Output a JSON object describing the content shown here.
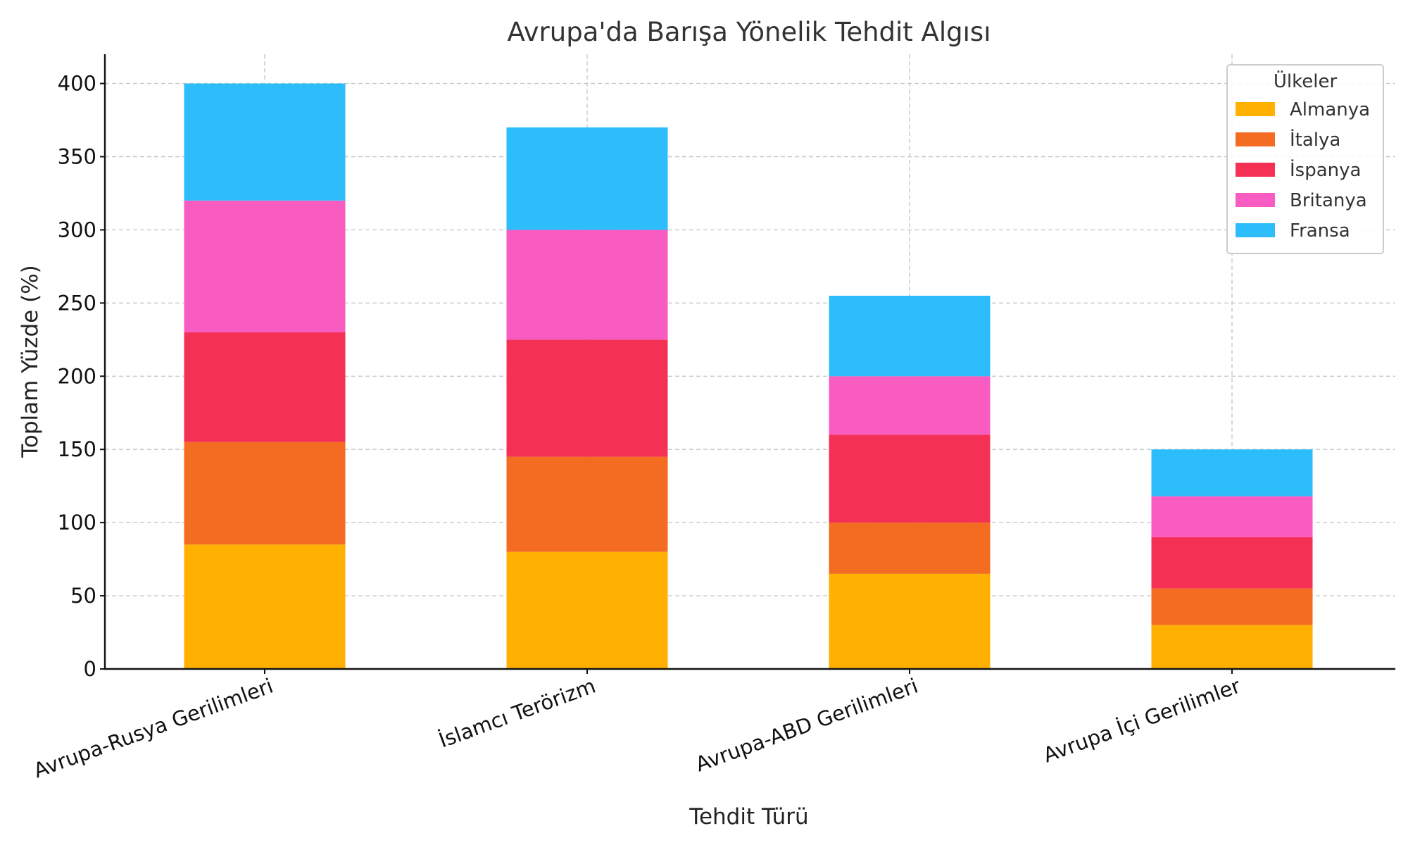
{
  "chart_data": {
    "type": "bar",
    "stacked": true,
    "title": "Avrupa'da Barışa Yönelik Tehdit Algısı",
    "xlabel": "Tehdit Türü",
    "ylabel": "Toplam Yüzde (%)",
    "ylim": [
      0,
      420
    ],
    "yticks": [
      0,
      50,
      100,
      150,
      200,
      250,
      300,
      350,
      400
    ],
    "grid": true,
    "legend_title": "Ülkeler",
    "legend_position": "top-right",
    "categories": [
      "Avrupa-Rusya Gerilimleri",
      "İslamcı Terörizm",
      "Avrupa-ABD Gerilimleri",
      "Avrupa İçi Gerilimler"
    ],
    "series": [
      {
        "name": "Almanya",
        "color": "#FFB000",
        "values": [
          85,
          80,
          65,
          30
        ]
      },
      {
        "name": "İtalya",
        "color": "#F36C21",
        "values": [
          70,
          65,
          35,
          25
        ]
      },
      {
        "name": "İspanya",
        "color": "#F43155",
        "values": [
          75,
          80,
          60,
          35
        ]
      },
      {
        "name": "Britanya",
        "color": "#F85CC0",
        "values": [
          90,
          75,
          40,
          28
        ]
      },
      {
        "name": "Fransa",
        "color": "#2EBDFB",
        "values": [
          80,
          70,
          55,
          32
        ]
      }
    ]
  }
}
